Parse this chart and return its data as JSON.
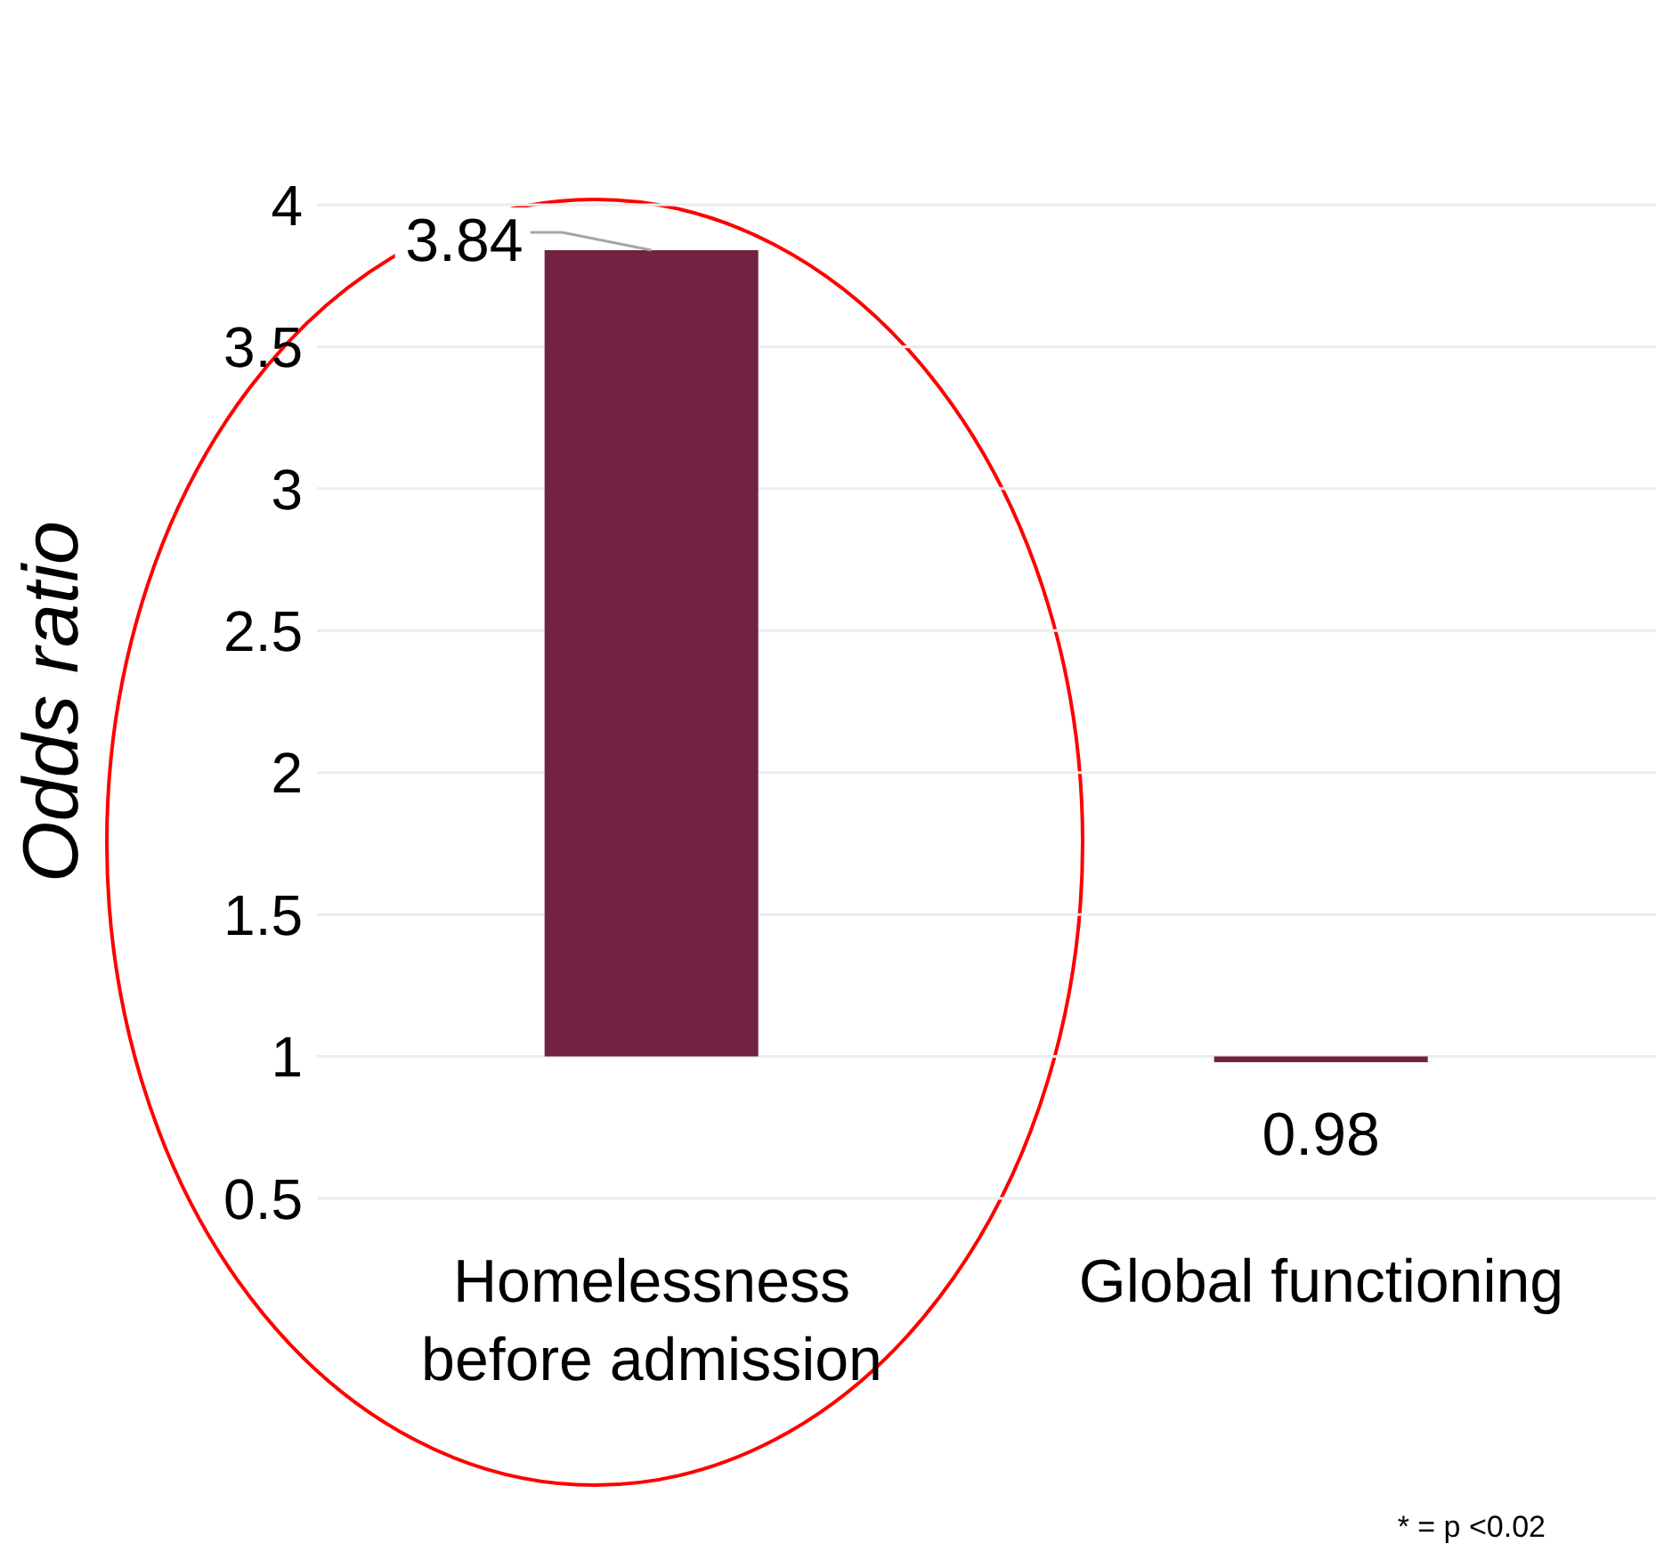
{
  "chart_data": {
    "type": "bar",
    "ylabel": "Odds ratio",
    "categories": [
      "Homelessness before admission",
      "Global functioning"
    ],
    "base": [
      1,
      1
    ],
    "values": [
      2.84,
      -0.02
    ],
    "value_labels": [
      "3.84",
      "0.98"
    ],
    "color": "#722242",
    "ylim": [
      0.5,
      4
    ],
    "yticks": [
      0.5,
      1,
      1.5,
      2,
      2.5,
      3,
      3.5,
      4
    ],
    "grid": "y",
    "annotations": [
      "* = p <0.02"
    ]
  }
}
